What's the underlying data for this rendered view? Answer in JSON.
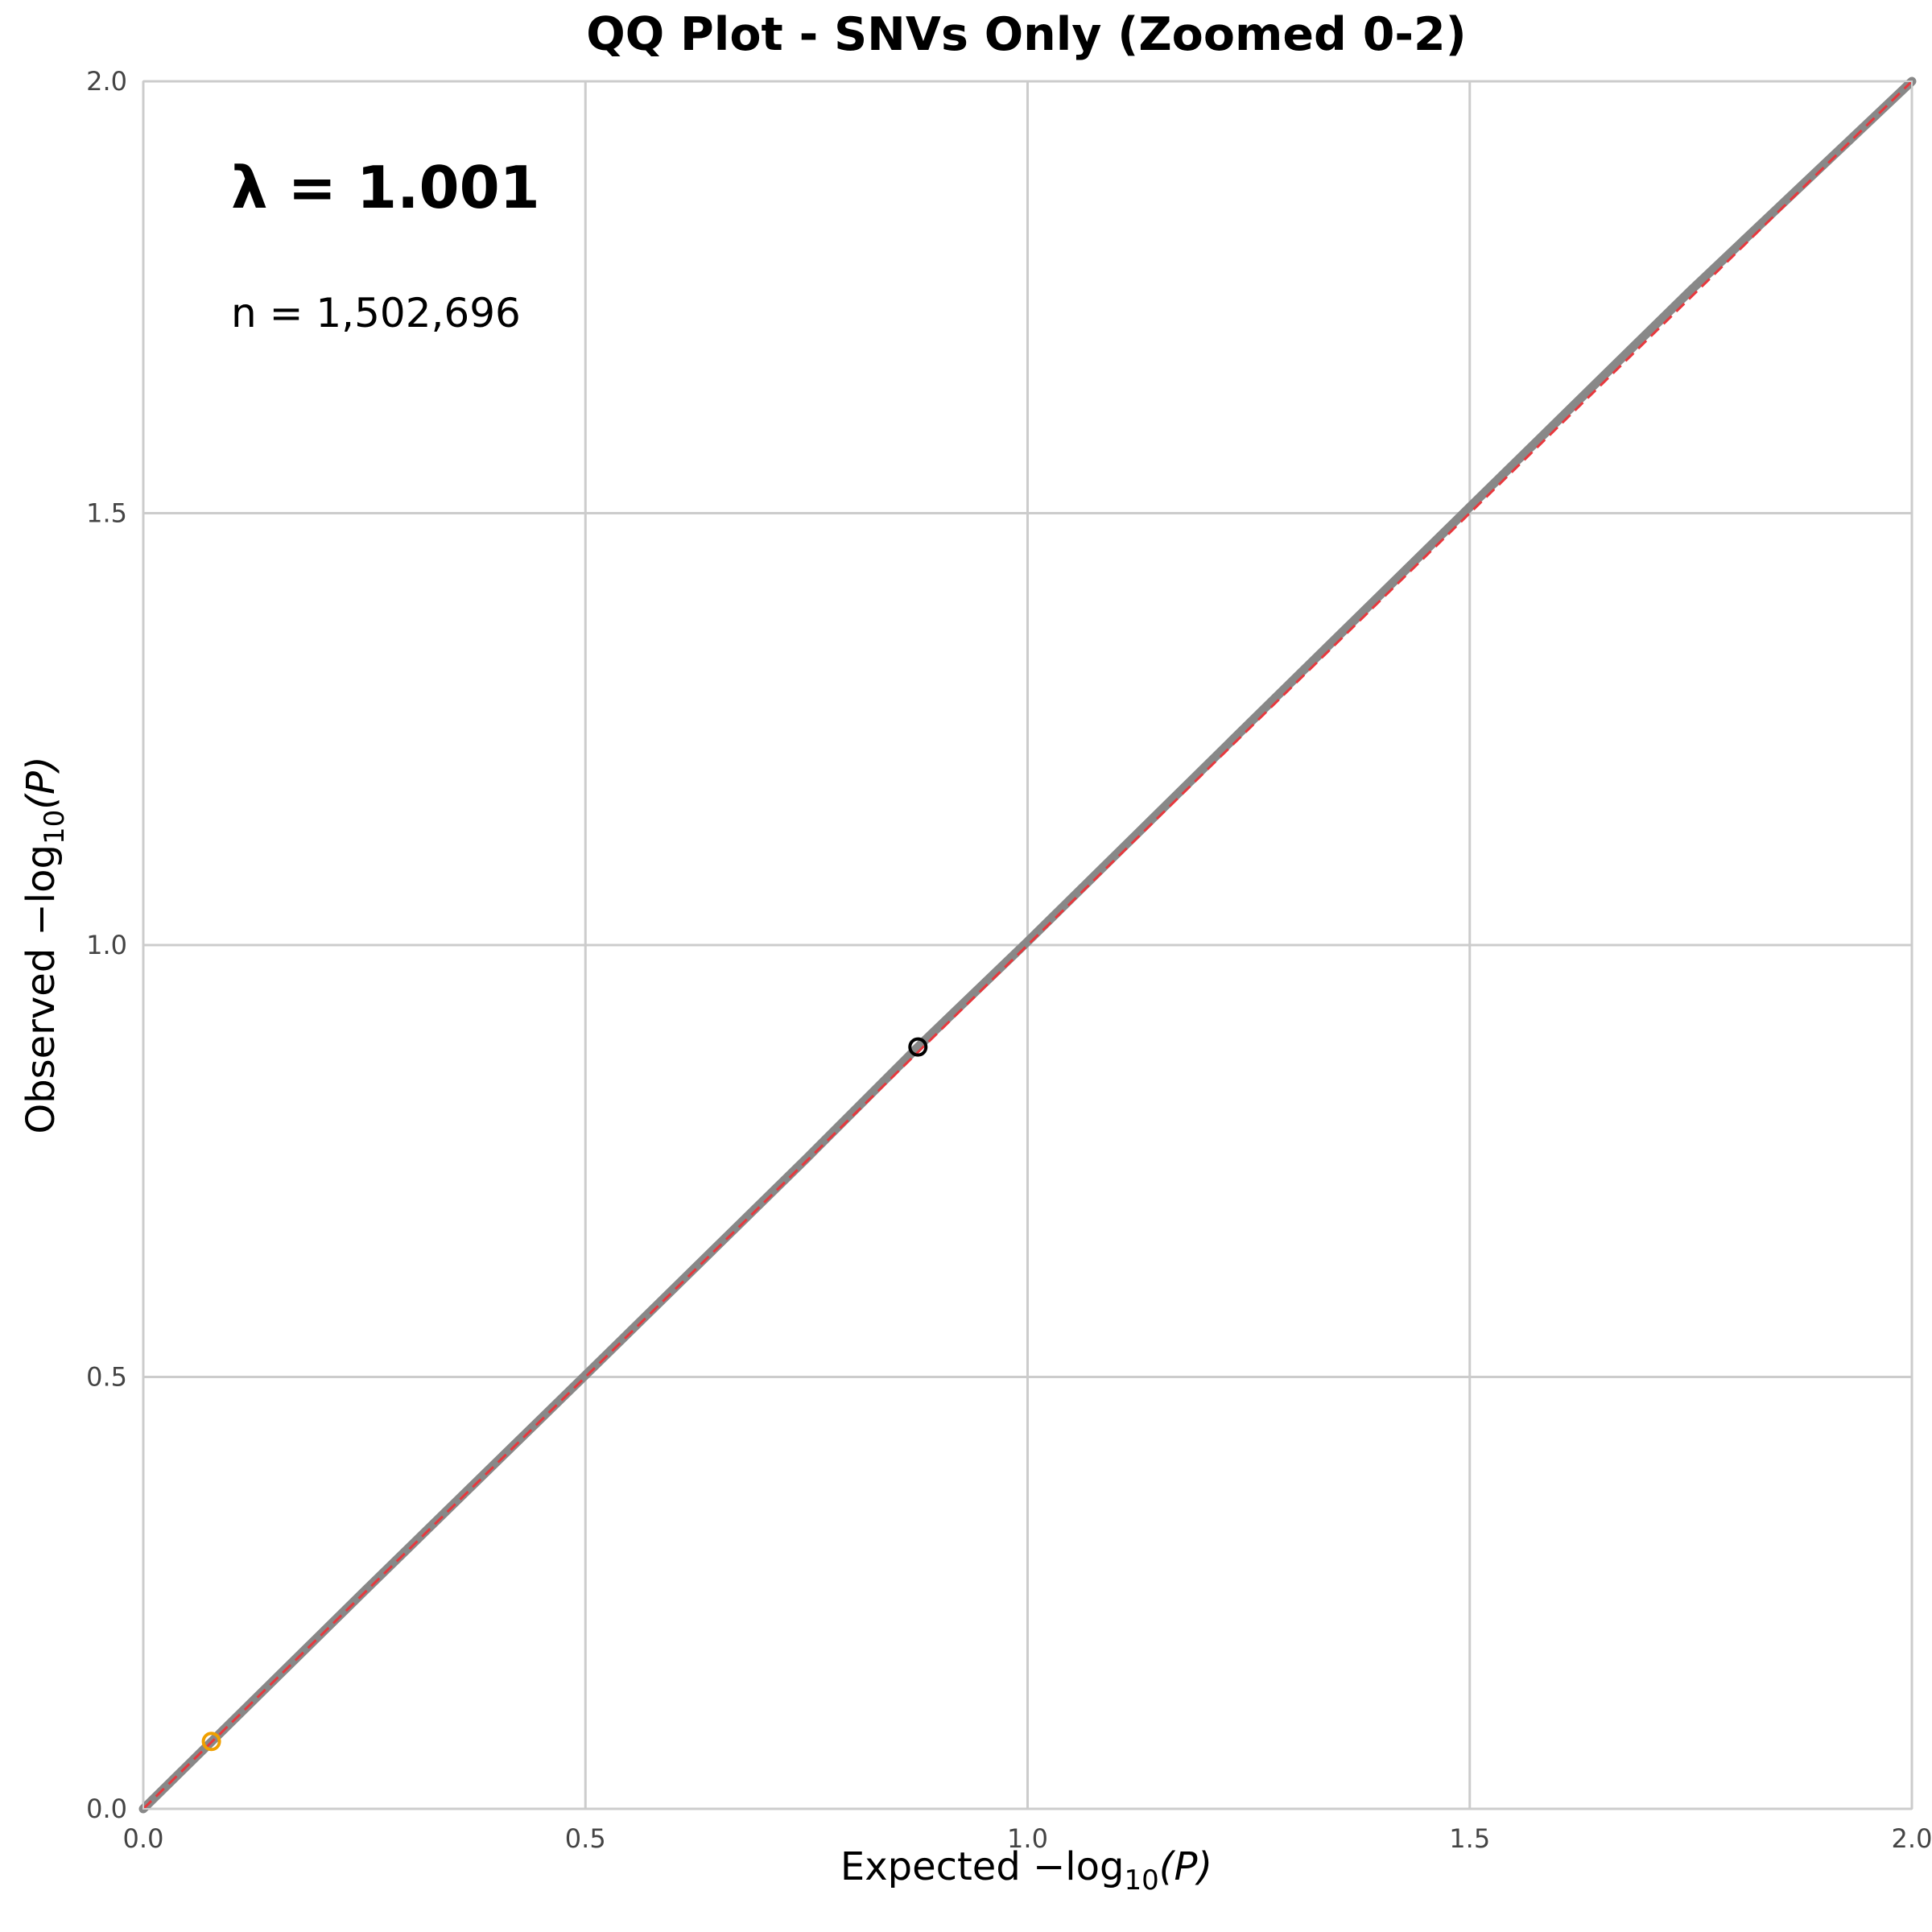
{
  "chart_data": {
    "type": "scatter",
    "title": "QQ Plot - SNVs Only (Zoomed 0-2)",
    "xlabel_prefix": "Expected ",
    "xlabel_math": "−log",
    "xlabel_sub": "10",
    "xlabel_suffix": "(P)",
    "ylabel_prefix": "Observed ",
    "ylabel_math": "−log",
    "ylabel_sub": "10",
    "ylabel_suffix": "(P)",
    "xlim": [
      0,
      2
    ],
    "ylim": [
      0,
      2
    ],
    "xticks": [
      0,
      0.5,
      1,
      1.5,
      2
    ],
    "yticks": [
      0,
      0.5,
      1,
      1.5,
      2
    ],
    "xtick_labels": [
      "0.0",
      "0.5",
      "1.0",
      "1.5",
      "2.0"
    ],
    "ytick_labels": [
      "0.0",
      "0.5",
      "1.0",
      "1.5",
      "2.0"
    ],
    "grid": true,
    "annotations": {
      "lambda": "λ = 1.001",
      "n": "n = 1,502,696"
    },
    "series": [
      {
        "kind": "points",
        "color": "#888888",
        "x": [
          0,
          0.25,
          0.5,
          0.75,
          0.876,
          1.0,
          1.25,
          1.5,
          1.75,
          2.0
        ],
        "y": [
          0,
          0.252,
          0.502,
          0.753,
          0.882,
          1.004,
          1.256,
          1.507,
          1.758,
          2.0
        ]
      },
      {
        "kind": "expected-line",
        "color": "#e8383d",
        "style": "dashed",
        "x": [
          0,
          2
        ],
        "y": [
          0,
          2
        ]
      }
    ],
    "highlighted_points": [
      {
        "x": 0.077,
        "y": 0.078,
        "color": "#f0a000"
      },
      {
        "x": 0.876,
        "y": 0.882,
        "color": "#000000"
      }
    ]
  }
}
